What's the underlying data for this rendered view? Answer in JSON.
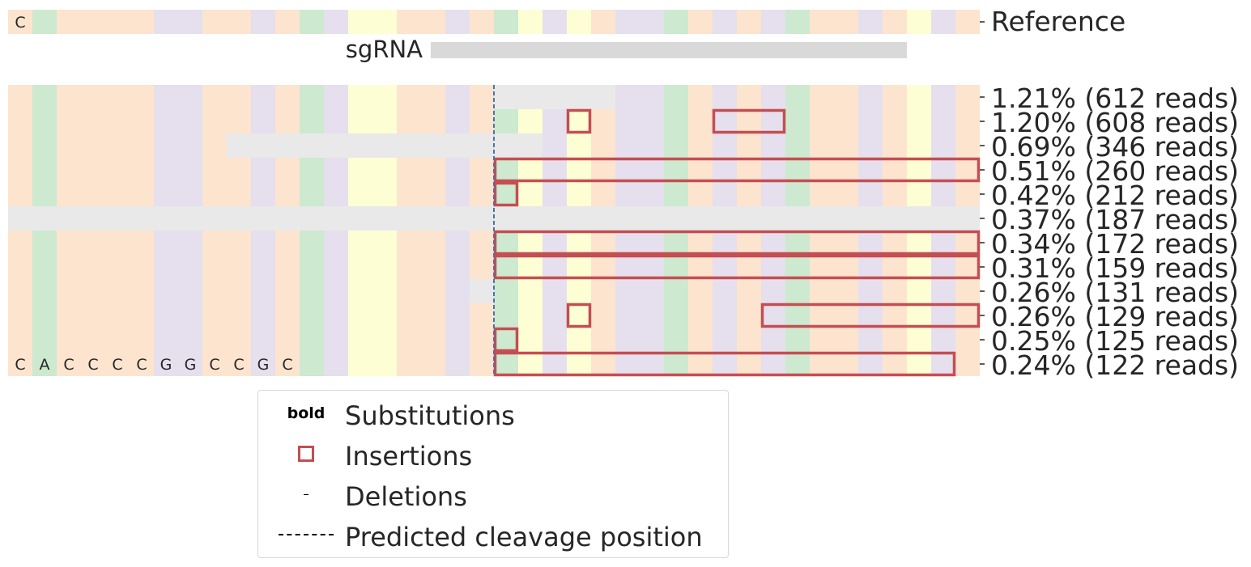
{
  "chart_data": {
    "type": "heatmap",
    "reference": {
      "label": "Reference",
      "sequence": "CACCCCGGCCGCAGTTCCGCATGTCGGACGCGACCGCTGCCAGT",
      "shown_letters": [
        "C"
      ]
    },
    "sgrna": {
      "label": "sgRNA",
      "start": 17,
      "end": 37
    },
    "cut_position": 20,
    "bottom_letters": [
      "C",
      "A",
      "C",
      "C",
      "C",
      "C",
      "G",
      "G",
      "C",
      "C",
      "G",
      "C"
    ],
    "rows": [
      {
        "label": "1.21% (612 reads)",
        "pct": 1.21,
        "reads": 612,
        "deletions": [
          [
            20,
            25
          ]
        ],
        "insertions": []
      },
      {
        "label": "1.20% (608 reads)",
        "pct": 1.2,
        "reads": 608,
        "deletions": [],
        "insertions": [
          [
            23,
            24
          ],
          [
            29,
            32
          ]
        ]
      },
      {
        "label": "0.69% (346 reads)",
        "pct": 0.69,
        "reads": 346,
        "deletions": [
          [
            9,
            22
          ]
        ],
        "insertions": []
      },
      {
        "label": "0.51% (260 reads)",
        "pct": 0.51,
        "reads": 260,
        "deletions": [],
        "insertions": [
          [
            20,
            40
          ]
        ]
      },
      {
        "label": "0.42% (212 reads)",
        "pct": 0.42,
        "reads": 212,
        "deletions": [],
        "insertions": [
          [
            20,
            21
          ]
        ]
      },
      {
        "label": "0.37% (187 reads)",
        "pct": 0.37,
        "reads": 187,
        "deletions": [
          [
            0,
            40
          ]
        ],
        "insertions": []
      },
      {
        "label": "0.34% (172 reads)",
        "pct": 0.34,
        "reads": 172,
        "deletions": [],
        "insertions": [
          [
            20,
            40
          ]
        ]
      },
      {
        "label": "0.31% (159 reads)",
        "pct": 0.31,
        "reads": 159,
        "deletions": [],
        "insertions": [
          [
            20,
            40
          ]
        ]
      },
      {
        "label": "0.26% (131 reads)",
        "pct": 0.26,
        "reads": 131,
        "deletions": [
          [
            19,
            20
          ]
        ],
        "insertions": []
      },
      {
        "label": "0.26% (129 reads)",
        "pct": 0.26,
        "reads": 129,
        "deletions": [],
        "insertions": [
          [
            23,
            24
          ],
          [
            31,
            40
          ]
        ]
      },
      {
        "label": "0.25% (125 reads)",
        "pct": 0.25,
        "reads": 125,
        "deletions": [],
        "insertions": [
          [
            20,
            21
          ]
        ]
      },
      {
        "label": "0.24% (122 reads)",
        "pct": 0.24,
        "reads": 122,
        "deletions": [],
        "insertions": [
          [
            20,
            39
          ]
        ]
      }
    ],
    "colors": {
      "A": "#cde9cf",
      "C": "#fde4cf",
      "G": "#e5dfee",
      "T": "#fefed5",
      "deletion": "#e9e9e9",
      "sgrna": "#d9d9d9",
      "insertion": "#c44e52",
      "cut_line": "#4c72b0"
    },
    "legend": {
      "bold_key": "bold",
      "entries": [
        "Substitutions",
        "Insertions",
        "Deletions",
        "Predicted cleavage position"
      ]
    }
  }
}
